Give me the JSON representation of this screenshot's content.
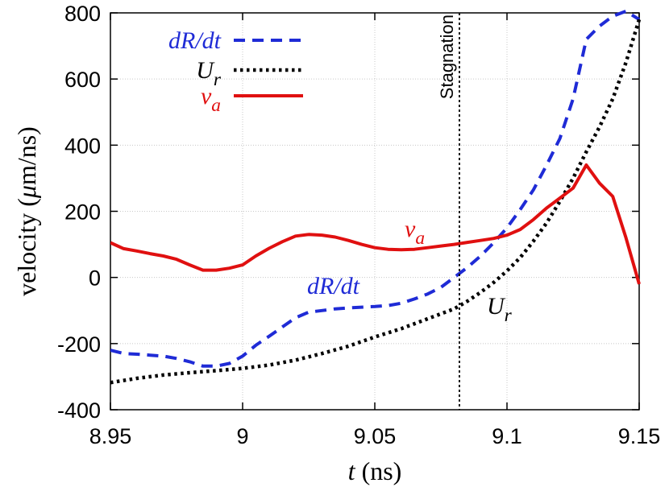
{
  "chart_data": {
    "type": "line",
    "xlabel": "t (ns)",
    "ylabel": "velocity (μm/ns)",
    "xlim": [
      8.95,
      9.15
    ],
    "ylim": [
      -400,
      800
    ],
    "xticks": [
      8.95,
      9.0,
      9.05,
      9.1,
      9.15
    ],
    "xtick_labels": [
      "8.95",
      "9",
      "9.05",
      "9.1",
      "9.15"
    ],
    "yticks": [
      -400,
      -200,
      0,
      200,
      400,
      600,
      800
    ],
    "ytick_labels": [
      "-400",
      "-200",
      "0",
      "200",
      "400",
      "600",
      "800"
    ],
    "grid": true,
    "legend_position": "top-left",
    "series": [
      {
        "name": "dR/dt",
        "color": "#1f2bd6",
        "style": "dashed",
        "x": [
          8.95,
          8.955,
          8.96,
          8.965,
          8.97,
          8.975,
          8.98,
          8.985,
          8.99,
          8.995,
          9.0,
          9.005,
          9.01,
          9.015,
          9.02,
          9.025,
          9.03,
          9.035,
          9.04,
          9.045,
          9.05,
          9.055,
          9.06,
          9.065,
          9.07,
          9.075,
          9.08,
          9.085,
          9.09,
          9.095,
          9.1,
          9.105,
          9.11,
          9.115,
          9.12,
          9.125,
          9.13,
          9.135,
          9.14,
          9.145,
          9.15
        ],
        "y": [
          -220,
          -230,
          -232,
          -235,
          -238,
          -245,
          -255,
          -268,
          -268,
          -260,
          -238,
          -205,
          -178,
          -150,
          -122,
          -105,
          -100,
          -95,
          -92,
          -90,
          -88,
          -85,
          -78,
          -65,
          -50,
          -30,
          0,
          30,
          65,
          105,
          150,
          205,
          265,
          340,
          420,
          540,
          720,
          760,
          790,
          805,
          780
        ]
      },
      {
        "name": "U_r",
        "color": "#000000",
        "style": "dotted",
        "x": [
          8.95,
          8.96,
          8.97,
          8.98,
          8.99,
          9.0,
          9.01,
          9.02,
          9.03,
          9.04,
          9.05,
          9.06,
          9.07,
          9.08,
          9.085,
          9.09,
          9.095,
          9.1,
          9.105,
          9.11,
          9.115,
          9.12,
          9.125,
          9.13,
          9.135,
          9.14,
          9.145,
          9.15
        ],
        "y": [
          -318,
          -305,
          -295,
          -288,
          -282,
          -275,
          -265,
          -250,
          -230,
          -208,
          -180,
          -155,
          -125,
          -95,
          -72,
          -45,
          -15,
          20,
          60,
          110,
          165,
          230,
          300,
          380,
          455,
          540,
          650,
          780
        ]
      },
      {
        "name": "v_a",
        "color": "#e01010",
        "style": "solid",
        "x": [
          8.95,
          8.955,
          8.96,
          8.965,
          8.97,
          8.975,
          8.98,
          8.985,
          8.99,
          8.995,
          9.0,
          9.005,
          9.01,
          9.015,
          9.02,
          9.025,
          9.03,
          9.035,
          9.04,
          9.045,
          9.05,
          9.055,
          9.06,
          9.065,
          9.07,
          9.075,
          9.08,
          9.085,
          9.09,
          9.095,
          9.1,
          9.105,
          9.11,
          9.115,
          9.12,
          9.125,
          9.13,
          9.135,
          9.14,
          9.145,
          9.15
        ],
        "y": [
          105,
          87,
          80,
          72,
          65,
          55,
          38,
          22,
          22,
          28,
          38,
          65,
          88,
          108,
          125,
          130,
          128,
          122,
          112,
          100,
          90,
          85,
          84,
          85,
          90,
          95,
          100,
          106,
          112,
          118,
          128,
          145,
          175,
          210,
          240,
          270,
          340,
          285,
          245,
          120,
          -20
        ]
      }
    ],
    "annotations": [
      {
        "text": "Stagnation",
        "x": 9.082,
        "kind": "vertical-line"
      },
      {
        "text": "v_a",
        "series": "v_a"
      },
      {
        "text": "dR/dt",
        "series": "dR/dt"
      },
      {
        "text": "U_r",
        "series": "U_r"
      }
    ]
  }
}
